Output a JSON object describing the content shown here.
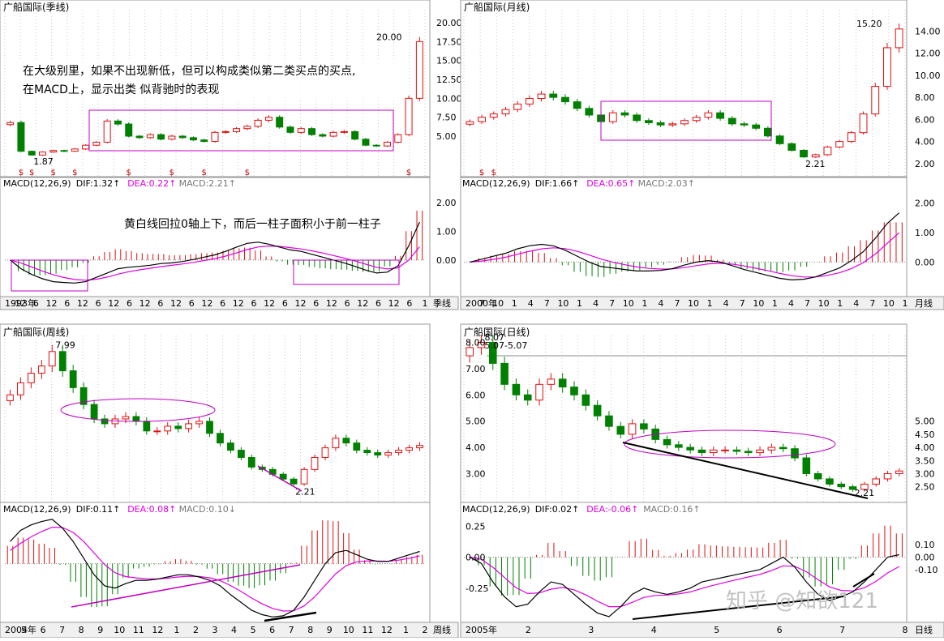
{
  "colors": {
    "up": "#e01010",
    "down": "#008000",
    "dea": "#e000e0",
    "dif": "#000000",
    "axis": "#555555",
    "box": "#c000c0",
    "dot": "#c0c0c0"
  },
  "panels": [
    {
      "id": "q",
      "title": "广船国际(季线)",
      "price_ticks": [
        "20.00",
        "17.50",
        "15.00",
        "12.50",
        "10.00",
        "7.50",
        "5.00"
      ],
      "price_range": [
        0.5,
        21.5
      ],
      "price_labels": {
        "high": "20.00",
        "low": "1.87"
      },
      "note_lines": [
        "在大级别里，如果不出现新低，但可以构成类似第二类买点的买点,",
        "在MACD上，显示出类 似背驰时的表现"
      ],
      "marker_glyph": "$",
      "macd_label": {
        "prefix": "MACD(12,26,9)",
        "dif": "DIF:1.32",
        "dea": "DEA:0.22",
        "macd": "MACD:2.21",
        "dif_arrow": "↑",
        "dea_arrow": "↑",
        "macd_arrow": "↑"
      },
      "macd_ticks": [
        "2.00",
        "1.00",
        "0.00"
      ],
      "macd_range": [
        -1.1,
        2.5
      ],
      "macd_note": "黄白线回拉0轴上下，而后一柱子面积小于前一柱子",
      "date_labels": [
        "1993年",
        "12",
        "6",
        "12",
        "6",
        "12",
        "6",
        "12",
        "6",
        "12",
        "6",
        "12",
        "6",
        "12",
        "6",
        "12",
        "6",
        "12",
        "6",
        "12",
        "6",
        "12",
        "6",
        "12",
        "6",
        "12",
        "6",
        "1"
      ],
      "period": "季线"
    },
    {
      "id": "m",
      "title": "广船国际(月线)",
      "price_ticks": [
        "14.00",
        "12.00",
        "10.00",
        "8.00",
        "6.00",
        "4.00",
        "2.00"
      ],
      "price_range": [
        1.4,
        15.8
      ],
      "price_labels": {
        "high": "15.20",
        "low": "2.21"
      },
      "marker_glyph": "$",
      "macd_label": {
        "prefix": "MACD(12,26,9)",
        "dif": "DIF:1.66",
        "dea": "DEA:0.65",
        "macd": "MACD:2.03",
        "dif_arrow": "↑",
        "dea_arrow": "↑",
        "macd_arrow": "↑"
      },
      "macd_ticks": [
        "2.00",
        "1.00",
        "0.00"
      ],
      "macd_range": [
        -1.0,
        2.5
      ],
      "date_labels": [
        "2000年",
        "7",
        "10",
        "1",
        "4",
        "7",
        "10",
        "1",
        "4",
        "7",
        "10",
        "1",
        "4",
        "7",
        "10",
        "1",
        "4",
        "7",
        "10",
        "1",
        "4",
        "7",
        "10",
        "1",
        "4",
        "7",
        "10",
        "1"
      ],
      "period": "月线"
    },
    {
      "id": "w",
      "title": "广船国际(周线)",
      "price_ticks": [],
      "price_range": [
        1.8,
        8.4
      ],
      "price_labels": {
        "high": "7.99",
        "low": "2.21"
      },
      "macd_label": {
        "prefix": "MACD(12,26,9)",
        "dif": "DIF:0.11",
        "dea": "DEA:0.08",
        "macd": "MACD:0.10",
        "dif_arrow": "↑",
        "dea_arrow": "↑",
        "macd_arrow": "↓"
      },
      "macd_ticks": [],
      "macd_range": [
        -0.5,
        0.45
      ],
      "date_labels": [
        "2004年",
        "5",
        "6",
        "7",
        "8",
        "9",
        "10",
        "11",
        "12",
        "1",
        "2",
        "3",
        "4",
        "5",
        "6",
        "7",
        "8",
        "9",
        "10",
        "11",
        "12",
        "1",
        "2"
      ],
      "period": "周线"
    },
    {
      "id": "d",
      "title": "广船国际(日线)",
      "price_ticks_left": [
        "8.00",
        "7.00",
        "6.00",
        "5.00",
        "4.00",
        "3.00"
      ],
      "price_ticks": [
        "5.00",
        "4.50",
        "4.00",
        "3.50",
        "3.00",
        "2.50"
      ],
      "price_range": [
        2.15,
        8.2
      ],
      "price_labels": {
        "high": "5.07-5.07",
        "high2": "8.07",
        "low": "2.21"
      },
      "macd_label": {
        "prefix": "MACD(12,26,9)",
        "dif": "DIF:0.02",
        "dea": "DEA:-0.06",
        "macd": "MACD:0.16",
        "dif_arrow": "↑",
        "dea_arrow": "↑",
        "macd_arrow": "↑"
      },
      "macd_ticks_left": [
        "0.25",
        "0.00",
        "-0.25"
      ],
      "macd_ticks": [
        "0.10",
        "0.00",
        "-0.10"
      ],
      "macd_range": [
        -0.5,
        0.35
      ],
      "date_labels": [
        "2005年",
        "2",
        "3",
        "4",
        "5",
        "6",
        "7",
        "8"
      ],
      "period": "日线"
    }
  ],
  "watermark": "知乎 @知欲121",
  "chart_data": [
    {
      "type": "candlestick",
      "title": "广船国际(季线)",
      "ylim": [
        0.5,
        21.5
      ],
      "close": [
        6.8,
        3.0,
        2.5,
        2.9,
        3.1,
        3.0,
        3.3,
        3.8,
        4.2,
        7.0,
        6.6,
        5.0,
        4.8,
        5.2,
        4.6,
        5.0,
        4.8,
        4.5,
        4.3,
        5.5,
        5.6,
        6.0,
        6.3,
        7.1,
        7.5,
        6.2,
        5.5,
        6.0,
        5.2,
        5.0,
        5.5,
        5.6,
        4.6,
        3.8,
        3.7,
        4.2,
        5.2,
        10.0,
        17.5
      ],
      "macd_dif": [
        0.0,
        -0.3,
        -0.5,
        -0.65,
        -0.75,
        -0.78,
        -0.8,
        -0.75,
        -0.6,
        -0.45,
        -0.3,
        -0.25,
        -0.22,
        -0.18,
        -0.12,
        -0.1,
        -0.05,
        0.02,
        0.1,
        0.18,
        0.3,
        0.45,
        0.58,
        0.62,
        0.55,
        0.45,
        0.35,
        0.3,
        0.2,
        0.1,
        0.0,
        -0.1,
        -0.22,
        -0.35,
        -0.45,
        -0.42,
        -0.2,
        0.5,
        1.32
      ]
    },
    {
      "type": "candlestick",
      "title": "广船国际(月线)",
      "ylim": [
        1.4,
        15.8
      ],
      "close": [
        5.8,
        6.2,
        6.5,
        6.9,
        7.4,
        7.9,
        8.3,
        8.0,
        7.6,
        7.0,
        6.4,
        5.8,
        6.6,
        6.4,
        5.9,
        5.7,
        5.5,
        5.6,
        5.9,
        6.2,
        6.6,
        6.1,
        5.6,
        5.5,
        5.2,
        4.5,
        3.8,
        3.2,
        2.6,
        2.8,
        3.5,
        4.0,
        4.8,
        6.5,
        9.0,
        12.5,
        14.2
      ],
      "macd_dif": [
        0.0,
        0.1,
        0.2,
        0.3,
        0.45,
        0.55,
        0.6,
        0.55,
        0.4,
        0.2,
        0.0,
        -0.15,
        -0.2,
        -0.25,
        -0.3,
        -0.3,
        -0.28,
        -0.22,
        -0.1,
        0.0,
        0.05,
        0.0,
        -0.12,
        -0.25,
        -0.35,
        -0.45,
        -0.55,
        -0.6,
        -0.58,
        -0.5,
        -0.35,
        -0.2,
        0.05,
        0.35,
        0.8,
        1.3,
        1.66
      ]
    },
    {
      "type": "candlestick",
      "title": "广船国际(周线)",
      "ylim": [
        1.8,
        8.4
      ],
      "close": [
        6.0,
        6.5,
        6.9,
        7.2,
        7.8,
        7.0,
        6.3,
        5.6,
        5.0,
        4.8,
        5.0,
        5.1,
        4.9,
        4.5,
        4.5,
        4.7,
        4.6,
        4.8,
        4.9,
        4.4,
        4.0,
        3.7,
        3.4,
        3.0,
        2.9,
        2.7,
        2.5,
        2.3,
        2.9,
        3.4,
        3.8,
        4.2,
        4.0,
        3.7,
        3.6,
        3.5,
        3.6,
        3.7,
        3.8,
        3.9
      ],
      "macd_dif": [
        0.2,
        0.3,
        0.35,
        0.38,
        0.4,
        0.32,
        0.2,
        0.05,
        -0.1,
        -0.2,
        -0.22,
        -0.18,
        -0.15,
        -0.15,
        -0.14,
        -0.12,
        -0.1,
        -0.1,
        -0.12,
        -0.15,
        -0.2,
        -0.28,
        -0.35,
        -0.42,
        -0.46,
        -0.48,
        -0.47,
        -0.42,
        -0.3,
        -0.15,
        0.0,
        0.1,
        0.12,
        0.08,
        0.04,
        0.02,
        0.02,
        0.05,
        0.08,
        0.11
      ]
    },
    {
      "type": "candlestick",
      "title": "广船国际(日线)",
      "ylim": [
        2.15,
        8.2
      ],
      "close": [
        7.8,
        8.0,
        7.2,
        6.4,
        6.0,
        5.8,
        6.4,
        6.6,
        6.3,
        6.0,
        5.6,
        5.2,
        4.8,
        4.5,
        4.9,
        4.7,
        4.3,
        4.1,
        4.0,
        3.9,
        3.8,
        3.9,
        3.9,
        3.85,
        3.8,
        3.9,
        4.0,
        3.95,
        3.6,
        3.0,
        2.8,
        2.6,
        2.5,
        2.4,
        2.6,
        2.8,
        3.0,
        3.1
      ],
      "macd_dif": [
        0.0,
        -0.05,
        -0.2,
        -0.32,
        -0.4,
        -0.38,
        -0.28,
        -0.2,
        -0.22,
        -0.3,
        -0.38,
        -0.45,
        -0.48,
        -0.4,
        -0.3,
        -0.25,
        -0.28,
        -0.3,
        -0.28,
        -0.25,
        -0.2,
        -0.18,
        -0.16,
        -0.14,
        -0.12,
        -0.1,
        -0.05,
        0.0,
        -0.08,
        -0.2,
        -0.3,
        -0.35,
        -0.32,
        -0.28,
        -0.2,
        -0.1,
        0.0,
        0.02
      ]
    }
  ]
}
